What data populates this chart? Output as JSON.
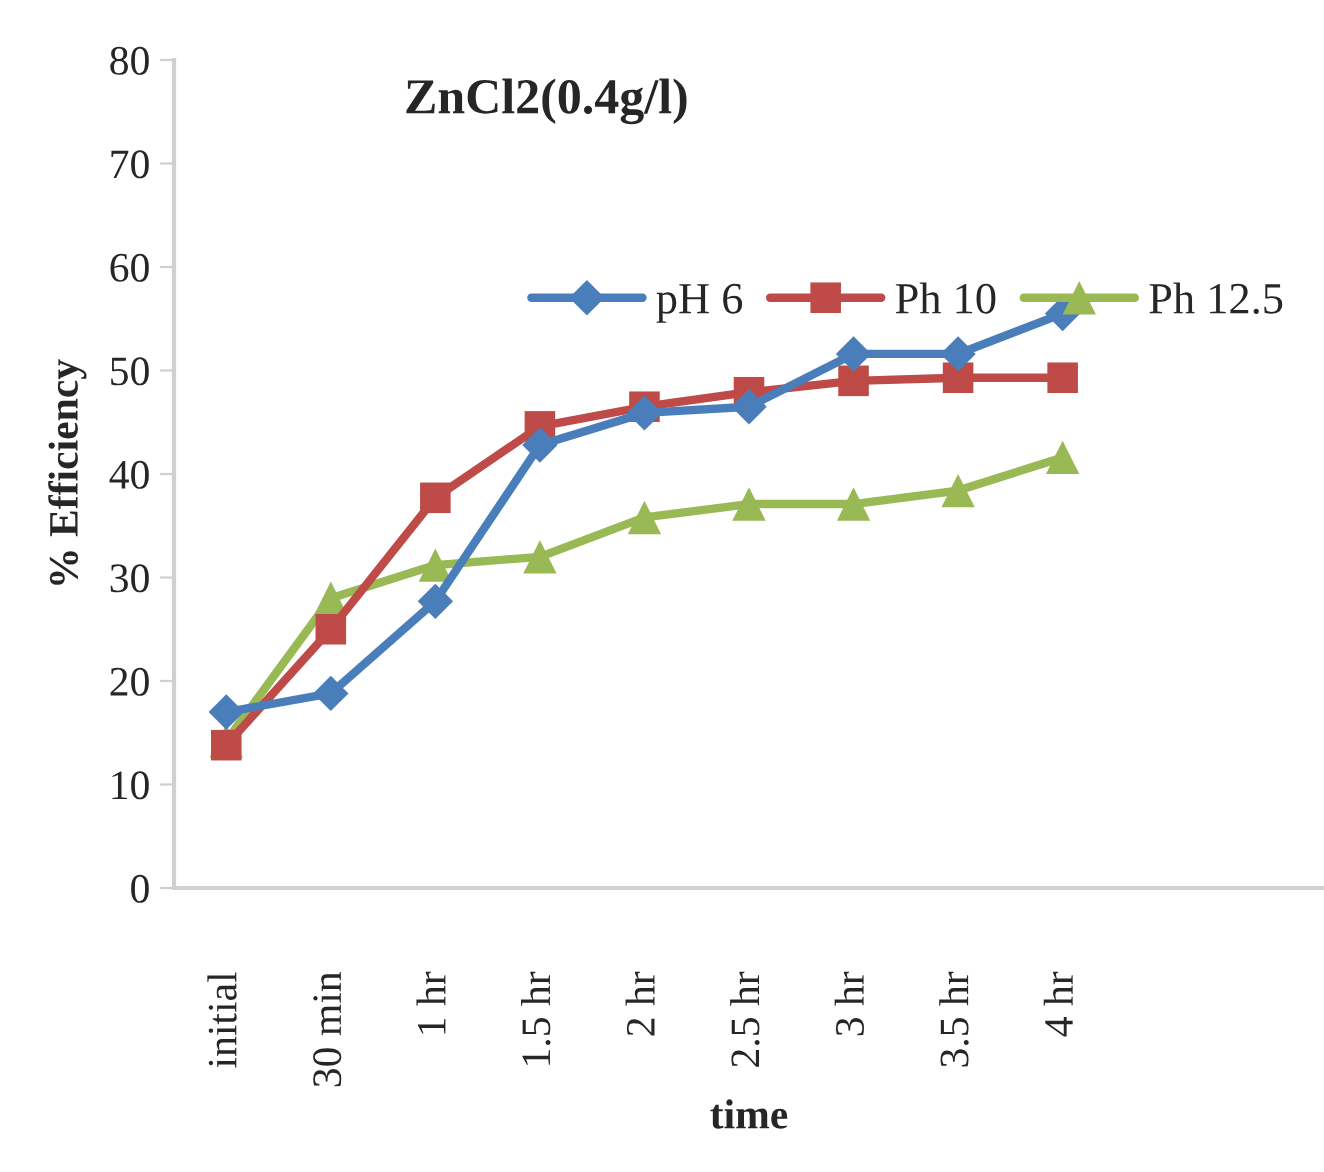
{
  "chart_data": {
    "type": "line",
    "title": "ZnCl2(0.4g/l)",
    "xlabel": "time",
    "ylabel": "% Efficiency",
    "categories": [
      "initial",
      "30 min",
      "1 hr",
      "1.5 hr",
      "2 hr",
      "2.5 hr",
      "3 hr",
      "3.5 hr",
      "4 hr",
      null,
      null
    ],
    "series": [
      {
        "name": "pH 6",
        "color": "#4a7ebb",
        "marker": "diamond",
        "values": [
          17,
          18.8,
          27.7,
          42.8,
          45.9,
          46.5,
          51.6,
          51.6,
          55.5,
          null,
          null
        ]
      },
      {
        "name": "Ph 10",
        "color": "#be4b48",
        "marker": "square",
        "values": [
          13.8,
          25,
          37.7,
          44.6,
          46.5,
          47.9,
          49,
          49.3,
          49.3,
          null,
          null
        ]
      },
      {
        "name": "Ph 12.5",
        "color": "#98b954",
        "marker": "triangle",
        "values": [
          14.2,
          28,
          31.2,
          32,
          35.8,
          37.1,
          37.1,
          38.4,
          41.6,
          null,
          null
        ]
      }
    ],
    "ylim": [
      0,
      80
    ],
    "yticks": [
      0,
      10,
      20,
      30,
      40,
      50,
      60,
      70,
      80
    ],
    "grid": false,
    "legend": "top right",
    "line_style": "solid"
  }
}
